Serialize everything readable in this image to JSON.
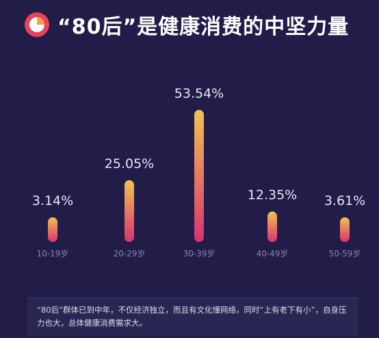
{
  "title": "“80后”是健康消费的中坚力量",
  "note": "“80后”群体已到中年，不仅经济独立，而且有文化懂网络，同时“上有老下有小”，自身压力也大，总体健康消费需求大。",
  "colors": {
    "background": "#211c48",
    "bar_top": "#f2c24f",
    "bar_bottom": "#d8336f",
    "logo_ring": "#e8435a",
    "logo_slice": "#f4a03c",
    "value_label": "#e8e8f2",
    "tick_label": "#8a86ad"
  },
  "chart_data": {
    "type": "bar",
    "categories": [
      "10-19岁",
      "20-29岁",
      "30-39岁",
      "40-49岁",
      "50-59岁"
    ],
    "values": [
      3.14,
      25.05,
      53.54,
      12.35,
      3.61
    ],
    "value_labels": [
      "3.14%",
      "25.05%",
      "53.54%",
      "12.35%",
      "3.61%"
    ],
    "title": "“80后”是健康消费的中坚力量",
    "xlabel": "",
    "ylabel": "",
    "unit": "%",
    "grid": false,
    "legend": "none"
  }
}
